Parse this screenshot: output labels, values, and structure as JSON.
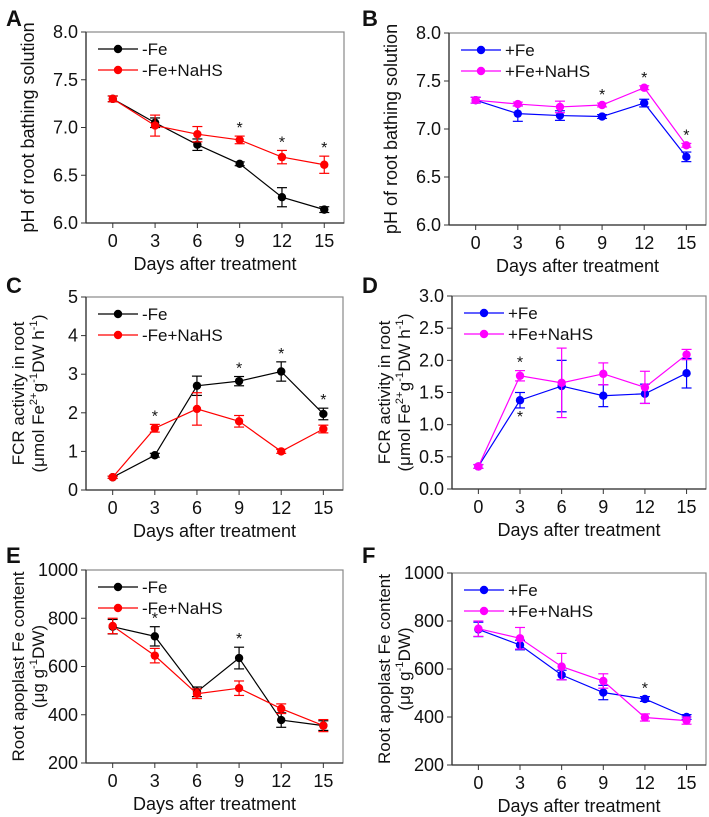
{
  "chart_data": [
    {
      "panel": "A",
      "type": "line",
      "xlabel": "Days after treatment",
      "ylabel_lines": [
        [
          {
            "t": "pH of root bathing solution"
          }
        ]
      ],
      "x": [
        0,
        3,
        6,
        9,
        12,
        15
      ],
      "xticks": [
        "0",
        "3",
        "6",
        "9",
        "12",
        "15"
      ],
      "ylim": [
        6.0,
        8.0
      ],
      "yticks": [
        "6.0",
        "6.5",
        "7.0",
        "7.5",
        "8.0"
      ],
      "legend_position": "top-left",
      "series": [
        {
          "name": "-Fe",
          "color": "#000000",
          "values": [
            7.3,
            7.05,
            6.82,
            6.62,
            6.27,
            6.14
          ],
          "errors": [
            0.03,
            0.05,
            0.06,
            0.02,
            0.1,
            0.03
          ]
        },
        {
          "name": "-Fe+NaHS",
          "color": "#ff0000",
          "values": [
            7.3,
            7.02,
            6.93,
            6.87,
            6.69,
            6.61
          ],
          "errors": [
            0.03,
            0.11,
            0.08,
            0.04,
            0.07,
            0.09
          ]
        }
      ],
      "significance": [
        {
          "x": 9,
          "label": "*"
        },
        {
          "x": 12,
          "label": "*"
        },
        {
          "x": 15,
          "label": "*"
        }
      ]
    },
    {
      "panel": "B",
      "type": "line",
      "xlabel": "Days after treatment",
      "ylabel_lines": [
        [
          {
            "t": "pH of root bathing solution"
          }
        ]
      ],
      "x": [
        0,
        3,
        6,
        9,
        12,
        15
      ],
      "xticks": [
        "0",
        "3",
        "6",
        "9",
        "12",
        "15"
      ],
      "ylim": [
        6.0,
        8.0
      ],
      "yticks": [
        "6.0",
        "6.5",
        "7.0",
        "7.5",
        "8.0"
      ],
      "legend_position": "top-left",
      "series": [
        {
          "name": "+Fe",
          "color": "#0000ff",
          "values": [
            7.3,
            7.16,
            7.14,
            7.13,
            7.27,
            6.71
          ],
          "errors": [
            0.03,
            0.08,
            0.05,
            0.02,
            0.04,
            0.05
          ]
        },
        {
          "name": "+Fe+NaHS",
          "color": "#ff00ff",
          "values": [
            7.3,
            7.26,
            7.23,
            7.25,
            7.43,
            6.83
          ],
          "errors": [
            0.03,
            0.02,
            0.06,
            0.02,
            0.02,
            0.02
          ]
        }
      ],
      "significance": [
        {
          "x": 9,
          "label": "*"
        },
        {
          "x": 12,
          "label": "*"
        },
        {
          "x": 15,
          "label": "*"
        }
      ]
    },
    {
      "panel": "C",
      "type": "line",
      "xlabel": "Days after treatment",
      "ylabel_lines": [
        [
          {
            "t": "FCR activity in root"
          }
        ],
        [
          {
            "t": "(μmol Fe"
          },
          {
            "t": "2+",
            "sup": true
          },
          {
            "t": " g"
          },
          {
            "t": "-1",
            "sup": true
          },
          {
            "t": " DW h"
          },
          {
            "t": "-1",
            "sup": true
          },
          {
            "t": ")"
          }
        ]
      ],
      "x": [
        0,
        3,
        6,
        9,
        12,
        15
      ],
      "xticks": [
        "0",
        "3",
        "6",
        "9",
        "12",
        "15"
      ],
      "ylim": [
        0,
        5
      ],
      "yticks": [
        "0",
        "1",
        "2",
        "3",
        "4",
        "5"
      ],
      "legend_position": "top-left",
      "series": [
        {
          "name": "-Fe",
          "color": "#000000",
          "values": [
            0.33,
            0.9,
            2.7,
            2.82,
            3.07,
            1.97
          ],
          "errors": [
            0.03,
            0.05,
            0.25,
            0.12,
            0.25,
            0.15
          ]
        },
        {
          "name": "-Fe+NaHS",
          "color": "#ff0000",
          "values": [
            0.33,
            1.6,
            2.1,
            1.78,
            1.0,
            1.58
          ],
          "errors": [
            0.03,
            0.1,
            0.42,
            0.15,
            0.05,
            0.1
          ]
        }
      ],
      "significance": [
        {
          "x": 3,
          "label": "*"
        },
        {
          "x": 9,
          "label": "*"
        },
        {
          "x": 12,
          "label": "*"
        },
        {
          "x": 15,
          "label": "*"
        }
      ]
    },
    {
      "panel": "D",
      "type": "line",
      "xlabel": "Days after treatment",
      "ylabel_lines": [
        [
          {
            "t": "FCR activity in root"
          }
        ],
        [
          {
            "t": "(μmol Fe"
          },
          {
            "t": "2+",
            "sup": true
          },
          {
            "t": " g"
          },
          {
            "t": "-1",
            "sup": true
          },
          {
            "t": " DW h"
          },
          {
            "t": "-1",
            "sup": true
          },
          {
            "t": ")"
          }
        ]
      ],
      "x": [
        0,
        3,
        6,
        9,
        12,
        15
      ],
      "xticks": [
        "0",
        "3",
        "6",
        "9",
        "12",
        "15"
      ],
      "ylim": [
        0,
        3
      ],
      "yticks": [
        "0.0",
        "0.5",
        "1.0",
        "1.5",
        "2.0",
        "2.5",
        "3.0"
      ],
      "legend_position": "top-left",
      "series": [
        {
          "name": "+Fe",
          "color": "#0000ff",
          "values": [
            0.35,
            1.38,
            1.6,
            1.45,
            1.48,
            1.8
          ],
          "errors": [
            0.03,
            0.12,
            0.4,
            0.17,
            0.15,
            0.23
          ]
        },
        {
          "name": "+Fe+NaHS",
          "color": "#ff00ff",
          "values": [
            0.35,
            1.76,
            1.65,
            1.79,
            1.58,
            2.09
          ],
          "errors": [
            0.03,
            0.08,
            0.54,
            0.17,
            0.25,
            0.08
          ]
        }
      ],
      "significance": [
        {
          "x": 3,
          "label": "*"
        },
        {
          "x": 3,
          "label": "*",
          "below": true
        }
      ]
    },
    {
      "panel": "E",
      "type": "line",
      "xlabel": "Days after treatment",
      "ylabel_lines": [
        [
          {
            "t": "Root apoplast Fe content"
          }
        ],
        [
          {
            "t": "(μg g"
          },
          {
            "t": "-1",
            "sup": true
          },
          {
            "t": " DW)"
          }
        ]
      ],
      "x": [
        0,
        3,
        6,
        9,
        12,
        15
      ],
      "xticks": [
        "0",
        "3",
        "6",
        "9",
        "12",
        "15"
      ],
      "ylim": [
        200,
        1000
      ],
      "yticks": [
        "200",
        "400",
        "600",
        "800",
        "1000"
      ],
      "legend_position": "top-left",
      "series": [
        {
          "name": "-Fe",
          "color": "#000000",
          "values": [
            765,
            725,
            495,
            635,
            378,
            355
          ],
          "errors": [
            30,
            40,
            20,
            45,
            30,
            20
          ]
        },
        {
          "name": "-Fe+NaHS",
          "color": "#ff0000",
          "values": [
            768,
            645,
            487,
            510,
            425,
            355
          ],
          "errors": [
            32,
            30,
            20,
            30,
            20,
            25
          ]
        }
      ],
      "significance": [
        {
          "x": 3,
          "label": "*"
        },
        {
          "x": 9,
          "label": "*"
        }
      ]
    },
    {
      "panel": "F",
      "type": "line",
      "xlabel": "Days after treatment",
      "ylabel_lines": [
        [
          {
            "t": "Root apoplast Fe content"
          }
        ],
        [
          {
            "t": "(μg g"
          },
          {
            "t": "-1",
            "sup": true
          },
          {
            "t": " DW)"
          }
        ]
      ],
      "x": [
        0,
        3,
        6,
        9,
        12,
        15
      ],
      "xticks": [
        "0",
        "3",
        "6",
        "9",
        "12",
        "15"
      ],
      "ylim": [
        200,
        1000
      ],
      "yticks": [
        "200",
        "400",
        "600",
        "800",
        "1000"
      ],
      "legend_position": "top-left",
      "series": [
        {
          "name": "+Fe",
          "color": "#0000ff",
          "values": [
            765,
            700,
            575,
            502,
            475,
            400
          ],
          "errors": [
            30,
            20,
            20,
            30,
            10,
            10
          ]
        },
        {
          "name": "+Fe+NaHS",
          "color": "#ff00ff",
          "values": [
            768,
            728,
            610,
            550,
            398,
            385
          ],
          "errors": [
            32,
            45,
            55,
            30,
            15,
            15
          ]
        }
      ],
      "significance": [
        {
          "x": 12,
          "label": "*"
        }
      ]
    }
  ]
}
